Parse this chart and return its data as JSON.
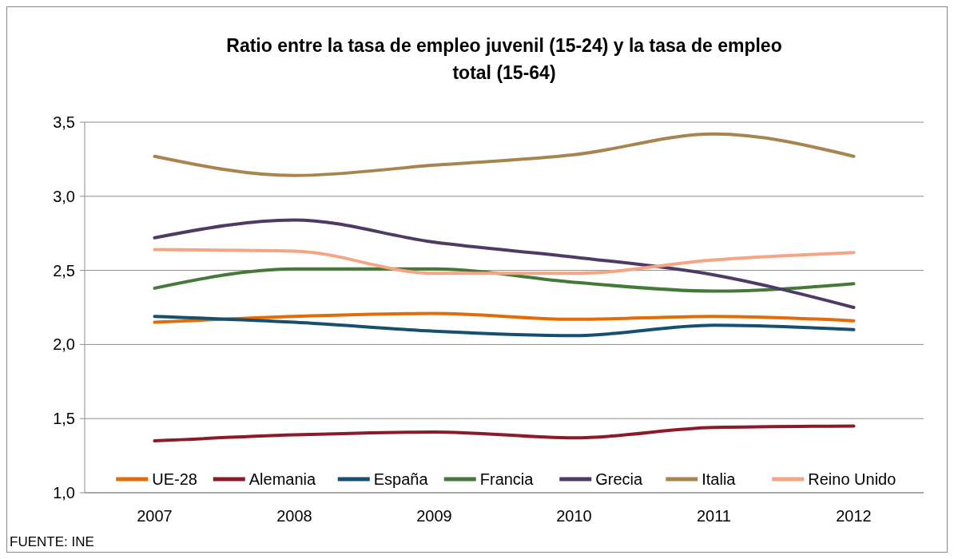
{
  "chart_data": {
    "type": "line",
    "title": "Ratio entre la tasa de empleo juvenil (15-24) y la tasa de empleo total (15-64)",
    "categories": [
      "2007",
      "2008",
      "2009",
      "2010",
      "2011",
      "2012"
    ],
    "series": [
      {
        "name": "UE-28",
        "color": "#e26b0a",
        "values": [
          2.15,
          2.19,
          2.21,
          2.17,
          2.19,
          2.16
        ]
      },
      {
        "name": "Alemania",
        "color": "#8b1a2b",
        "values": [
          1.35,
          1.39,
          1.41,
          1.37,
          1.44,
          1.45
        ]
      },
      {
        "name": "España",
        "color": "#17506e",
        "values": [
          2.19,
          2.15,
          2.09,
          2.06,
          2.13,
          2.1
        ]
      },
      {
        "name": "Francia",
        "color": "#44793a",
        "values": [
          2.38,
          2.51,
          2.51,
          2.42,
          2.36,
          2.41
        ]
      },
      {
        "name": "Grecia",
        "color": "#4f3a63",
        "values": [
          2.72,
          2.84,
          2.69,
          2.59,
          2.47,
          2.25
        ]
      },
      {
        "name": "Italia",
        "color": "#a8844e",
        "values": [
          3.27,
          3.14,
          3.21,
          3.28,
          3.42,
          3.27
        ]
      },
      {
        "name": "Reino Unido",
        "color": "#f5a584",
        "values": [
          2.64,
          2.63,
          2.48,
          2.48,
          2.57,
          2.62
        ]
      }
    ],
    "ylim": [
      1,
      3.5
    ],
    "yticks": [
      {
        "value": 1,
        "label": "1,0"
      },
      {
        "value": 1.5,
        "label": "1,5"
      },
      {
        "value": 2,
        "label": "2,0"
      },
      {
        "value": 2.5,
        "label": "2,5"
      },
      {
        "value": 3,
        "label": "3,0"
      },
      {
        "value": 3.5,
        "label": "3,5"
      }
    ],
    "grid": "y",
    "legend": "bottom",
    "marker": "none",
    "line_style": "solid",
    "annotations": [
      "FUENTE: INE"
    ]
  }
}
